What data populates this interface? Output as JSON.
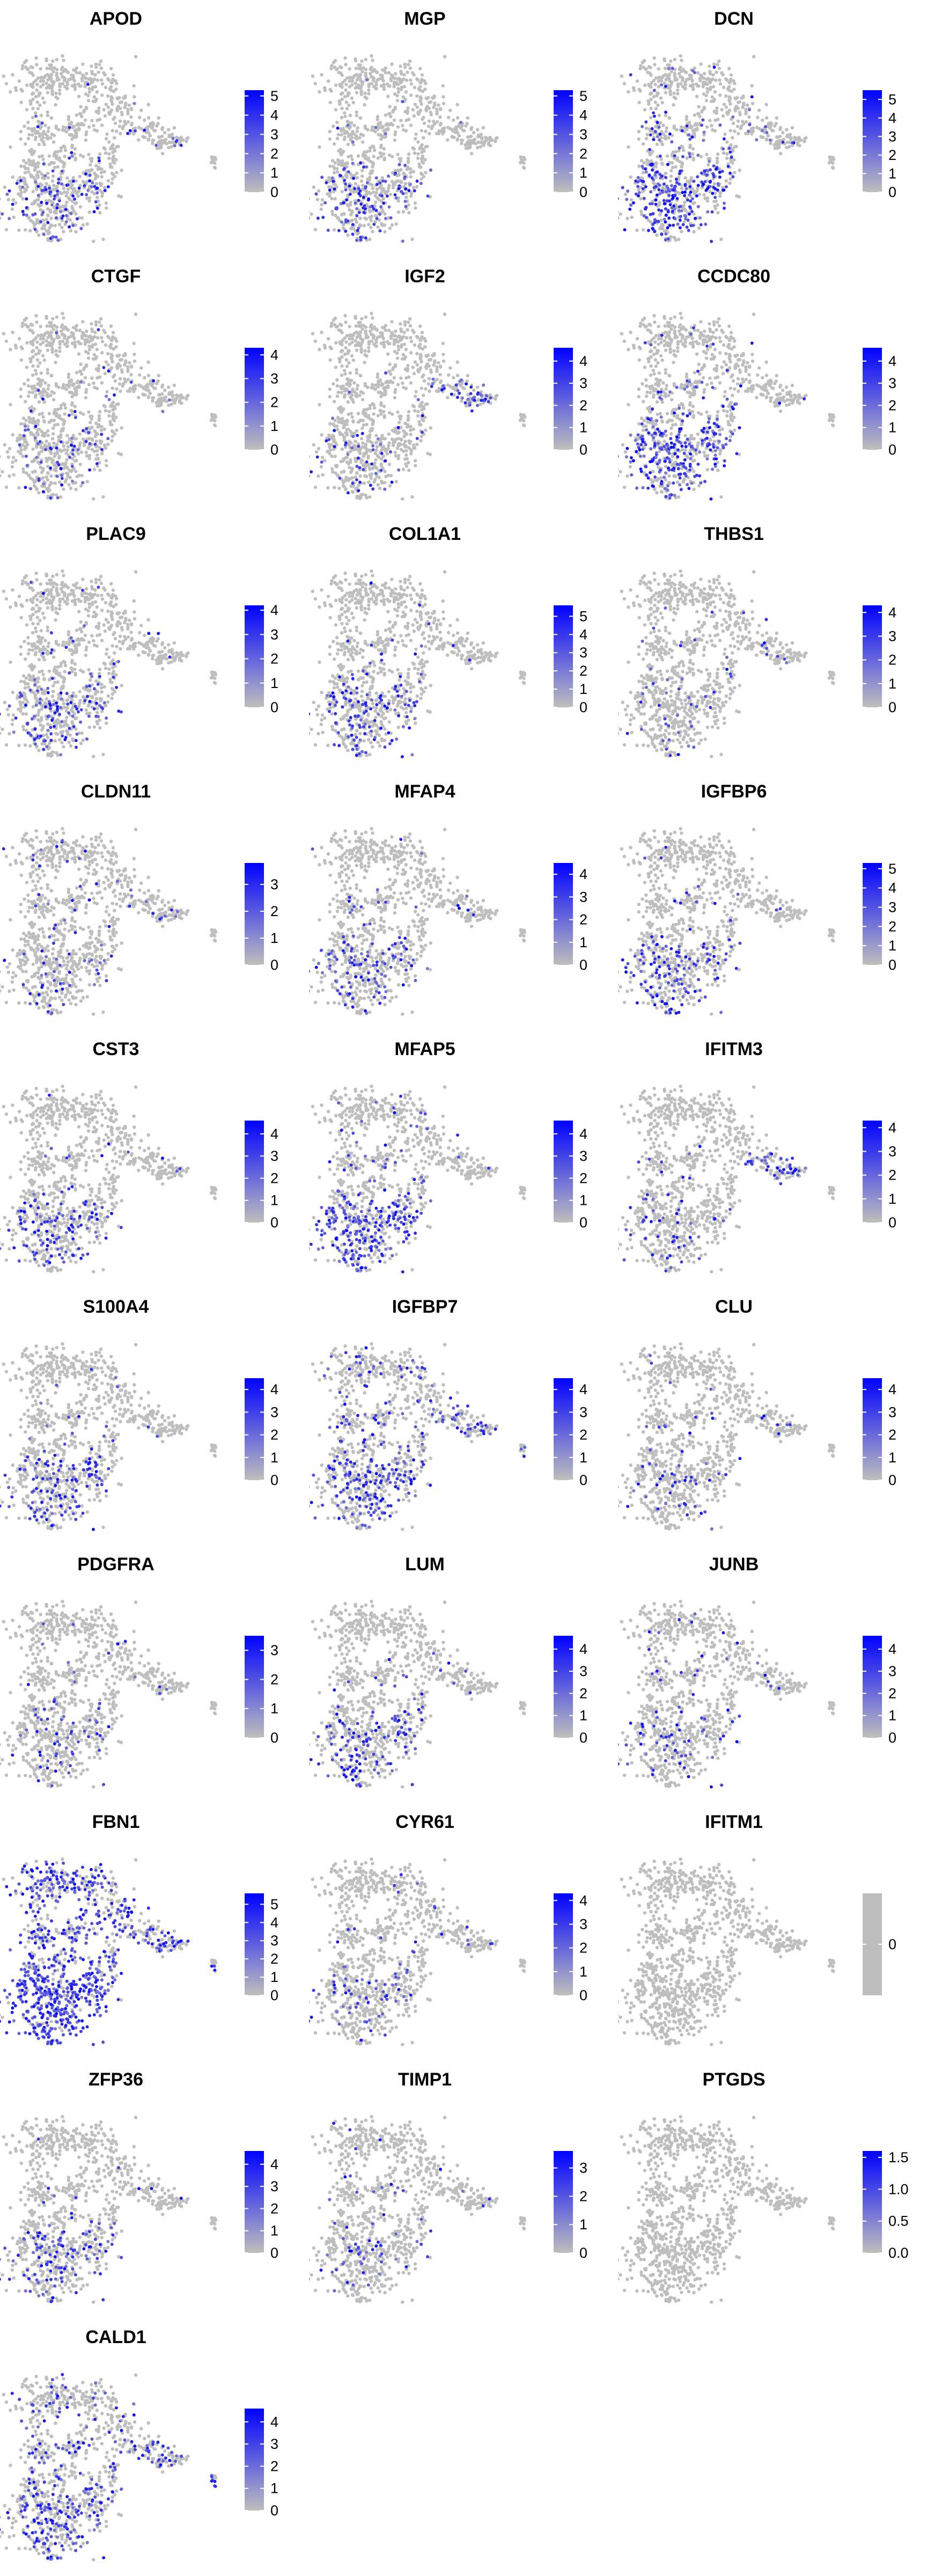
{
  "colors": {
    "low": "#BEBEBE",
    "high": "#0000FF",
    "background": "#FFFFFF"
  },
  "chart_data": [
    {
      "type": "scatter",
      "title": "APOD",
      "legend_ticks": [
        "0",
        "1",
        "2",
        "3",
        "4",
        "5"
      ],
      "color_range": [
        0,
        5.3
      ],
      "expression": "fibroblast-lower"
    },
    {
      "type": "scatter",
      "title": "MGP",
      "legend_ticks": [
        "0",
        "1",
        "2",
        "3",
        "4",
        "5"
      ],
      "color_range": [
        0,
        5.3
      ],
      "expression": "fibroblast-lower"
    },
    {
      "type": "scatter",
      "title": "DCN",
      "legend_ticks": [
        "0",
        "1",
        "2",
        "3",
        "4",
        "5"
      ],
      "color_range": [
        0,
        5.5
      ],
      "expression": "fibroblast-strong"
    },
    {
      "type": "scatter",
      "title": "CTGF",
      "legend_ticks": [
        "0",
        "1",
        "2",
        "3",
        "4"
      ],
      "color_range": [
        0,
        4.3
      ],
      "expression": "sparse"
    },
    {
      "type": "scatter",
      "title": "IGF2",
      "legend_ticks": [
        "0",
        "1",
        "2",
        "3",
        "4"
      ],
      "color_range": [
        0,
        4.6
      ],
      "expression": "arm-sparse"
    },
    {
      "type": "scatter",
      "title": "CCDC80",
      "legend_ticks": [
        "0",
        "1",
        "2",
        "3",
        "4"
      ],
      "color_range": [
        0,
        4.6
      ],
      "expression": "fibroblast-strong"
    },
    {
      "type": "scatter",
      "title": "PLAC9",
      "legend_ticks": [
        "0",
        "1",
        "2",
        "3",
        "4"
      ],
      "color_range": [
        0,
        4.2
      ],
      "expression": "fibroblast-lower"
    },
    {
      "type": "scatter",
      "title": "COL1A1",
      "legend_ticks": [
        "0",
        "1",
        "2",
        "3",
        "4",
        "5"
      ],
      "color_range": [
        0,
        5.6
      ],
      "expression": "fibroblast-lower"
    },
    {
      "type": "scatter",
      "title": "THBS1",
      "legend_ticks": [
        "0",
        "1",
        "2",
        "3",
        "4"
      ],
      "color_range": [
        0,
        4.3
      ],
      "expression": "sparse"
    },
    {
      "type": "scatter",
      "title": "CLDN11",
      "legend_ticks": [
        "0",
        "1",
        "2",
        "3"
      ],
      "color_range": [
        0,
        3.8
      ],
      "expression": "sparse"
    },
    {
      "type": "scatter",
      "title": "MFAP4",
      "legend_ticks": [
        "0",
        "1",
        "2",
        "3",
        "4"
      ],
      "color_range": [
        0,
        4.5
      ],
      "expression": "fibroblast-lower"
    },
    {
      "type": "scatter",
      "title": "IGFBP6",
      "legend_ticks": [
        "0",
        "1",
        "2",
        "3",
        "4",
        "5"
      ],
      "color_range": [
        0,
        5.3
      ],
      "expression": "fibroblast-lower"
    },
    {
      "type": "scatter",
      "title": "CST3",
      "legend_ticks": [
        "0",
        "1",
        "2",
        "3",
        "4"
      ],
      "color_range": [
        0,
        4.6
      ],
      "expression": "fibroblast-lower"
    },
    {
      "type": "scatter",
      "title": "MFAP5",
      "legend_ticks": [
        "0",
        "1",
        "2",
        "3",
        "4"
      ],
      "color_range": [
        0,
        4.6
      ],
      "expression": "fibroblast-strong"
    },
    {
      "type": "scatter",
      "title": "IFITM3",
      "legend_ticks": [
        "0",
        "1",
        "2",
        "3",
        "4"
      ],
      "color_range": [
        0,
        4.3
      ],
      "expression": "arm-sparse"
    },
    {
      "type": "scatter",
      "title": "S100A4",
      "legend_ticks": [
        "0",
        "1",
        "2",
        "3",
        "4"
      ],
      "color_range": [
        0,
        4.5
      ],
      "expression": "fibroblast-lower"
    },
    {
      "type": "scatter",
      "title": "IGFBP7",
      "legend_ticks": [
        "0",
        "1",
        "2",
        "3",
        "4"
      ],
      "color_range": [
        0,
        4.5
      ],
      "expression": "widespread"
    },
    {
      "type": "scatter",
      "title": "CLU",
      "legend_ticks": [
        "0",
        "1",
        "2",
        "3",
        "4"
      ],
      "color_range": [
        0,
        4.5
      ],
      "expression": "sparse"
    },
    {
      "type": "scatter",
      "title": "PDGFRA",
      "legend_ticks": [
        "0",
        "1",
        "2",
        "3"
      ],
      "color_range": [
        0,
        3.5
      ],
      "expression": "sparse"
    },
    {
      "type": "scatter",
      "title": "LUM",
      "legend_ticks": [
        "0",
        "1",
        "2",
        "3",
        "4"
      ],
      "color_range": [
        0,
        4.6
      ],
      "expression": "fibroblast-lower"
    },
    {
      "type": "scatter",
      "title": "JUNB",
      "legend_ticks": [
        "0",
        "1",
        "2",
        "3",
        "4"
      ],
      "color_range": [
        0,
        4.6
      ],
      "expression": "sparse"
    },
    {
      "type": "scatter",
      "title": "FBN1",
      "legend_ticks": [
        "0",
        "1",
        "2",
        "3",
        "4",
        "5"
      ],
      "color_range": [
        0,
        5.6
      ],
      "expression": "everywhere"
    },
    {
      "type": "scatter",
      "title": "CYR61",
      "legend_ticks": [
        "0",
        "1",
        "2",
        "3",
        "4"
      ],
      "color_range": [
        0,
        4.3
      ],
      "expression": "sparse"
    },
    {
      "type": "scatter",
      "title": "IFITM1",
      "legend_ticks": [
        "0"
      ],
      "color_range": [
        0,
        0
      ],
      "expression": "none"
    },
    {
      "type": "scatter",
      "title": "ZFP36",
      "legend_ticks": [
        "0",
        "1",
        "2",
        "3",
        "4"
      ],
      "color_range": [
        0,
        4.6
      ],
      "expression": "fibroblast-lower"
    },
    {
      "type": "scatter",
      "title": "TIMP1",
      "legend_ticks": [
        "0",
        "1",
        "2",
        "3"
      ],
      "color_range": [
        0,
        3.6
      ],
      "expression": "sparse"
    },
    {
      "type": "scatter",
      "title": "PTGDS",
      "legend_ticks": [
        "0.0",
        "0.5",
        "1.0",
        "1.5"
      ],
      "color_range": [
        0,
        1.6
      ],
      "expression": "none"
    },
    {
      "type": "scatter",
      "title": "CALD1",
      "legend_ticks": [
        "0",
        "1",
        "2",
        "3",
        "4"
      ],
      "color_range": [
        0,
        4.6
      ],
      "expression": "widespread"
    }
  ]
}
